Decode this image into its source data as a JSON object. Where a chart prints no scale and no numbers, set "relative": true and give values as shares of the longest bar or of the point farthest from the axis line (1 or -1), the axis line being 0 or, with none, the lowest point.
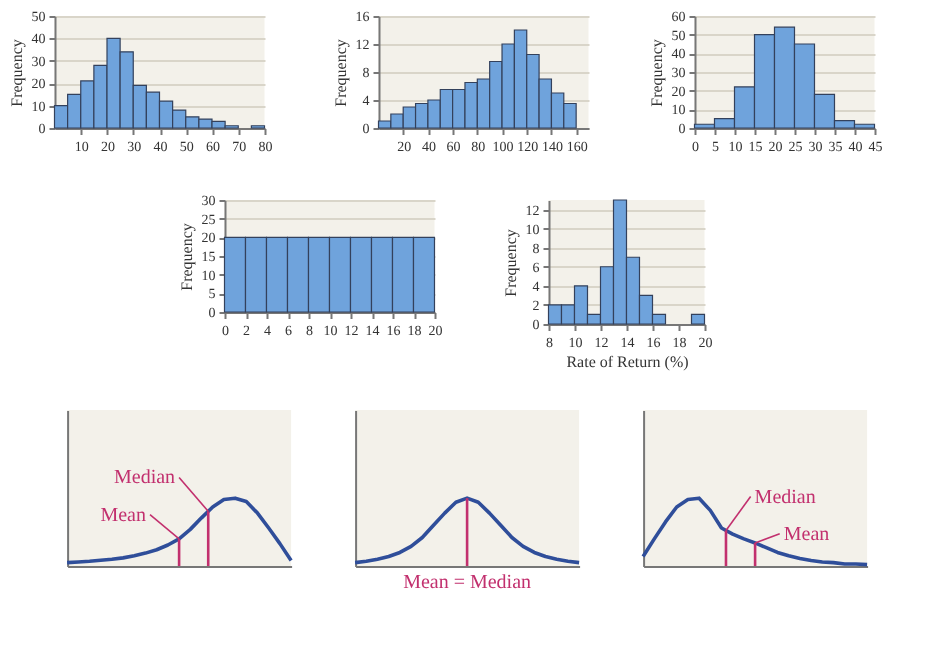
{
  "chart_data": [
    {
      "type": "histogram",
      "ylabel": "Frequency",
      "bins": [
        0,
        5,
        10,
        15,
        20,
        25,
        30,
        35,
        40,
        45,
        50,
        55,
        60,
        65,
        70,
        75,
        80
      ],
      "values": [
        10,
        15,
        21,
        28,
        40,
        34,
        19,
        16,
        12,
        8,
        5,
        4,
        3,
        1,
        0,
        1
      ],
      "color": "#6fa3dc",
      "xlim": [
        0,
        80
      ],
      "xticks": [
        10,
        20,
        30,
        40,
        50,
        60,
        70,
        80
      ],
      "ylim": [
        0,
        50
      ],
      "yticks": [
        0,
        10,
        20,
        30,
        40,
        50
      ],
      "grid": "y"
    },
    {
      "type": "histogram",
      "ylabel": "Frequency",
      "bins": [
        0,
        10,
        20,
        30,
        40,
        50,
        60,
        70,
        80,
        90,
        100,
        110,
        120,
        130,
        140,
        150,
        160
      ],
      "values": [
        1,
        2,
        3,
        3.5,
        4,
        5.5,
        5.5,
        6.5,
        7,
        9.5,
        12,
        14,
        10.5,
        7,
        5,
        3.5
      ],
      "color": "#6fa3dc",
      "xlim": [
        0,
        170
      ],
      "xticks": [
        20,
        40,
        60,
        80,
        100,
        120,
        140,
        160
      ],
      "ylim": [
        0,
        16
      ],
      "yticks": [
        0,
        4,
        8,
        12,
        16
      ],
      "grid": "y"
    },
    {
      "type": "histogram",
      "ylabel": "Frequency",
      "bins": [
        0,
        5,
        10,
        15,
        20,
        25,
        30,
        35,
        40,
        45
      ],
      "values": [
        2,
        5,
        22,
        50,
        54,
        45,
        18,
        4,
        2
      ],
      "color": "#6fa3dc",
      "xlim": [
        0,
        45
      ],
      "xticks": [
        0,
        5,
        10,
        15,
        20,
        25,
        30,
        35,
        40,
        45
      ],
      "ylim": [
        0,
        60
      ],
      "yticks": [
        0,
        10,
        20,
        30,
        40,
        50,
        60
      ],
      "grid": "y"
    },
    {
      "type": "histogram",
      "ylabel": "Frequency",
      "bins": [
        0,
        2,
        4,
        6,
        8,
        10,
        12,
        14,
        16,
        18,
        20
      ],
      "values": [
        20,
        20,
        20,
        20,
        20,
        20,
        20,
        20,
        20,
        20
      ],
      "color": "#6fa3dc",
      "xlim": [
        0,
        20
      ],
      "xticks": [
        0,
        2,
        4,
        6,
        8,
        10,
        12,
        14,
        16,
        18,
        20
      ],
      "ylim": [
        0,
        30
      ],
      "yticks": [
        0,
        5,
        10,
        15,
        20,
        25,
        30
      ],
      "grid": "y"
    },
    {
      "type": "histogram",
      "ylabel": "Frequency",
      "xlabel": "Rate of Return (%)",
      "bins": [
        8,
        9,
        10,
        11,
        12,
        13,
        14,
        15,
        16,
        17,
        18,
        19,
        20
      ],
      "values": [
        2,
        2,
        4,
        1,
        6,
        13,
        7,
        3,
        1,
        0,
        0,
        1
      ],
      "color": "#6fa3dc",
      "xlim": [
        8,
        20
      ],
      "xticks": [
        8,
        10,
        12,
        14,
        16,
        18,
        20
      ],
      "ylim": [
        0,
        13
      ],
      "yticks": [
        0,
        2,
        4,
        6,
        8,
        10,
        12
      ],
      "grid": "y"
    },
    {
      "type": "line",
      "relative": true,
      "categories": [
        null,
        null,
        null,
        null,
        null,
        null,
        null,
        null,
        null,
        null,
        null,
        null,
        null,
        null,
        null,
        null,
        null,
        null,
        null,
        null,
        null
      ],
      "values": [
        0.05,
        0.06,
        0.07,
        0.085,
        0.1,
        0.12,
        0.15,
        0.19,
        0.24,
        0.31,
        0.4,
        0.54,
        0.71,
        0.87,
        0.98,
        1.0,
        0.95,
        0.78,
        0.56,
        0.33,
        0.08
      ],
      "color": "#2f4e9a",
      "annotations": [
        "Median",
        "Mean"
      ]
    },
    {
      "type": "line",
      "relative": true,
      "categories": [
        null,
        null,
        null,
        null,
        null,
        null,
        null,
        null,
        null,
        null,
        null,
        null,
        null,
        null,
        null,
        null,
        null,
        null,
        null,
        null,
        null
      ],
      "values": [
        0.05,
        0.07,
        0.1,
        0.14,
        0.2,
        0.29,
        0.42,
        0.6,
        0.78,
        0.94,
        1.0,
        0.94,
        0.78,
        0.6,
        0.42,
        0.29,
        0.2,
        0.14,
        0.1,
        0.07,
        0.05
      ],
      "color": "#2f4e9a",
      "annotations": [
        "Mean = Median"
      ]
    },
    {
      "type": "line",
      "relative": true,
      "categories": [
        null,
        null,
        null,
        null,
        null,
        null,
        null,
        null,
        null,
        null,
        null,
        null,
        null,
        null,
        null,
        null,
        null,
        null,
        null,
        null,
        null
      ],
      "values": [
        0.14,
        0.4,
        0.65,
        0.87,
        0.98,
        1.0,
        0.82,
        0.56,
        0.47,
        0.4,
        0.34,
        0.27,
        0.2,
        0.15,
        0.11,
        0.08,
        0.06,
        0.05,
        0.03,
        0.03,
        0.02
      ],
      "color": "#2f4e9a",
      "annotations": [
        "Median",
        "Mean"
      ]
    }
  ]
}
